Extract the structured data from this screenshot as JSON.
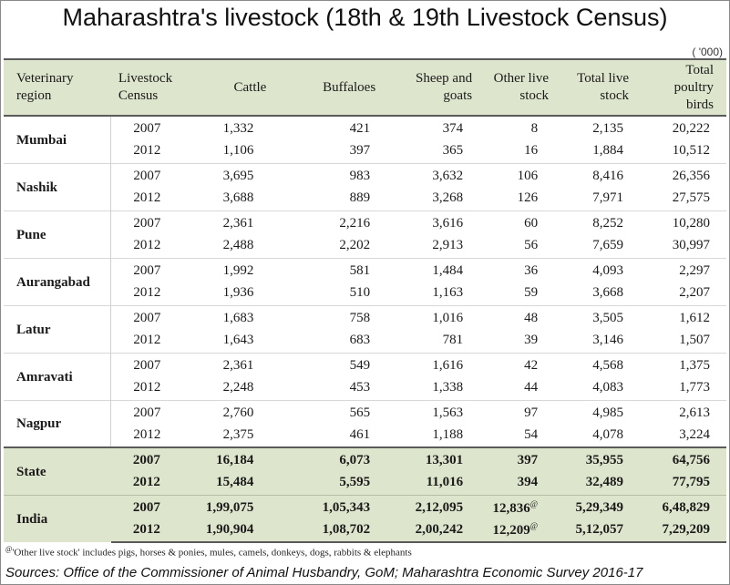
{
  "title": "Maharashtra's livestock (18th & 19th Livestock Census)",
  "unit": "( '000)",
  "headers": {
    "region": "Veterinary region",
    "census": "Livestock Census",
    "cattle": "Cattle",
    "buffaloes": "Buffaloes",
    "sheep": "Sheep and goats",
    "other": "Other live stock",
    "total": "Total live stock",
    "poultry": "Total poultry birds"
  },
  "regions": [
    {
      "name": "Mumbai",
      "rows": [
        {
          "year": "2007",
          "cattle": "1,332",
          "buffaloes": "421",
          "sheep": "374",
          "other": "8",
          "total": "2,135",
          "poultry": "20,222"
        },
        {
          "year": "2012",
          "cattle": "1,106",
          "buffaloes": "397",
          "sheep": "365",
          "other": "16",
          "total": "1,884",
          "poultry": "10,512"
        }
      ]
    },
    {
      "name": "Nashik",
      "rows": [
        {
          "year": "2007",
          "cattle": "3,695",
          "buffaloes": "983",
          "sheep": "3,632",
          "other": "106",
          "total": "8,416",
          "poultry": "26,356"
        },
        {
          "year": "2012",
          "cattle": "3,688",
          "buffaloes": "889",
          "sheep": "3,268",
          "other": "126",
          "total": "7,971",
          "poultry": "27,575"
        }
      ]
    },
    {
      "name": "Pune",
      "rows": [
        {
          "year": "2007",
          "cattle": "2,361",
          "buffaloes": "2,216",
          "sheep": "3,616",
          "other": "60",
          "total": "8,252",
          "poultry": "10,280"
        },
        {
          "year": "2012",
          "cattle": "2,488",
          "buffaloes": "2,202",
          "sheep": "2,913",
          "other": "56",
          "total": "7,659",
          "poultry": "30,997"
        }
      ]
    },
    {
      "name": "Aurangabad",
      "rows": [
        {
          "year": "2007",
          "cattle": "1,992",
          "buffaloes": "581",
          "sheep": "1,484",
          "other": "36",
          "total": "4,093",
          "poultry": "2,297"
        },
        {
          "year": "2012",
          "cattle": "1,936",
          "buffaloes": "510",
          "sheep": "1,163",
          "other": "59",
          "total": "3,668",
          "poultry": "2,207"
        }
      ]
    },
    {
      "name": "Latur",
      "rows": [
        {
          "year": "2007",
          "cattle": "1,683",
          "buffaloes": "758",
          "sheep": "1,016",
          "other": "48",
          "total": "3,505",
          "poultry": "1,612"
        },
        {
          "year": "2012",
          "cattle": "1,643",
          "buffaloes": "683",
          "sheep": "781",
          "other": "39",
          "total": "3,146",
          "poultry": "1,507"
        }
      ]
    },
    {
      "name": "Amravati",
      "rows": [
        {
          "year": "2007",
          "cattle": "2,361",
          "buffaloes": "549",
          "sheep": "1,616",
          "other": "42",
          "total": "4,568",
          "poultry": "1,375"
        },
        {
          "year": "2012",
          "cattle": "2,248",
          "buffaloes": "453",
          "sheep": "1,338",
          "other": "44",
          "total": "4,083",
          "poultry": "1,773"
        }
      ]
    },
    {
      "name": "Nagpur",
      "rows": [
        {
          "year": "2007",
          "cattle": "2,760",
          "buffaloes": "565",
          "sheep": "1,563",
          "other": "97",
          "total": "4,985",
          "poultry": "2,613"
        },
        {
          "year": "2012",
          "cattle": "2,375",
          "buffaloes": "461",
          "sheep": "1,188",
          "other": "54",
          "total": "4,078",
          "poultry": "3,224"
        }
      ]
    }
  ],
  "aggregates": [
    {
      "name": "State",
      "rows": [
        {
          "year": "2007",
          "cattle": "16,184",
          "buffaloes": "6,073",
          "sheep": "13,301",
          "other": "397",
          "total": "35,955",
          "poultry": "64,756"
        },
        {
          "year": "2012",
          "cattle": "15,484",
          "buffaloes": "5,595",
          "sheep": "11,016",
          "other": "394",
          "total": "32,489",
          "poultry": "77,795"
        }
      ]
    },
    {
      "name": "India",
      "rows": [
        {
          "year": "2007",
          "cattle": "1,99,075",
          "buffaloes": "1,05,343",
          "sheep": "2,12,095",
          "other": "12,836",
          "other_mark": "@",
          "total": "5,29,349",
          "poultry": "6,48,829"
        },
        {
          "year": "2012",
          "cattle": "1,90,904",
          "buffaloes": "1,08,702",
          "sheep": "2,00,242",
          "other": "12,209",
          "other_mark": "@",
          "total": "5,12,057",
          "poultry": "7,29,209"
        }
      ]
    }
  ],
  "footnote": {
    "mark": "@",
    "text": "'Other live stock' includes pigs, horses & ponies, mules, camels, donkeys, dogs, rabbits & elephants"
  },
  "source": "Sources: Office of the Commissioner of Animal Husbandry, GoM; Maharashtra Economic Survey 2016-17"
}
